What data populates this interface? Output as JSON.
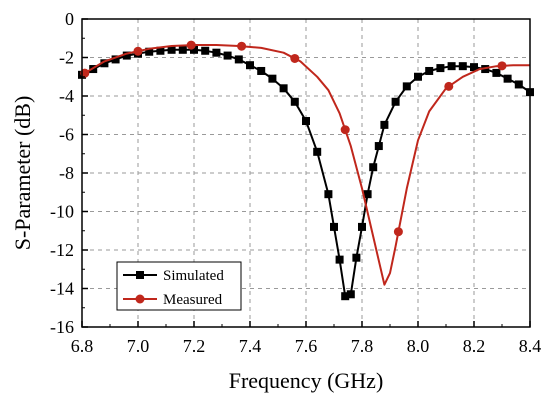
{
  "chart_data": {
    "type": "line",
    "xlabel": "Frequency (GHz)",
    "ylabel": "S-Parameter (dB)",
    "xlim": [
      6.8,
      8.4
    ],
    "ylim": [
      -16,
      0
    ],
    "x_ticks": [
      "6.8",
      "7.0",
      "7.2",
      "7.4",
      "7.6",
      "7.8",
      "8.0",
      "8.2",
      "8.4"
    ],
    "y_ticks": [
      "0",
      "-2",
      "-4",
      "-6",
      "-8",
      "-10",
      "-12",
      "-14",
      "-16"
    ],
    "grid": true,
    "grid_style": "dashed",
    "legend_position": "bottom-left",
    "series": [
      {
        "name": "Simulated",
        "color": "#000000",
        "marker": "square",
        "x": [
          6.8,
          6.84,
          6.88,
          6.92,
          6.96,
          7.0,
          7.04,
          7.08,
          7.12,
          7.16,
          7.2,
          7.24,
          7.28,
          7.32,
          7.36,
          7.4,
          7.44,
          7.48,
          7.52,
          7.56,
          7.6,
          7.64,
          7.68,
          7.7,
          7.72,
          7.74,
          7.76,
          7.78,
          7.8,
          7.82,
          7.84,
          7.86,
          7.88,
          7.92,
          7.96,
          8.0,
          8.04,
          8.08,
          8.12,
          8.16,
          8.2,
          8.24,
          8.28,
          8.32,
          8.36,
          8.4
        ],
        "y": [
          -2.9,
          -2.6,
          -2.3,
          -2.1,
          -1.9,
          -1.8,
          -1.7,
          -1.65,
          -1.6,
          -1.6,
          -1.6,
          -1.65,
          -1.75,
          -1.9,
          -2.1,
          -2.4,
          -2.7,
          -3.1,
          -3.6,
          -4.3,
          -5.3,
          -6.9,
          -9.1,
          -10.8,
          -12.5,
          -14.4,
          -14.3,
          -12.4,
          -10.8,
          -9.1,
          -7.7,
          -6.6,
          -5.5,
          -4.3,
          -3.5,
          -3.0,
          -2.7,
          -2.55,
          -2.45,
          -2.45,
          -2.5,
          -2.6,
          -2.8,
          -3.1,
          -3.4,
          -3.8
        ]
      },
      {
        "name": "Measured",
        "color": "#c0271c",
        "marker": "circle",
        "x": [
          6.8,
          6.88,
          6.96,
          7.04,
          7.12,
          7.2,
          7.28,
          7.36,
          7.44,
          7.52,
          7.58,
          7.64,
          7.68,
          7.72,
          7.76,
          7.8,
          7.84,
          7.88,
          7.9,
          7.92,
          7.96,
          8.0,
          8.04,
          8.1,
          8.16,
          8.22,
          8.28,
          8.34,
          8.4
        ],
        "y": [
          -2.9,
          -2.2,
          -1.8,
          -1.55,
          -1.4,
          -1.35,
          -1.35,
          -1.4,
          -1.5,
          -1.75,
          -2.2,
          -3.0,
          -3.7,
          -4.9,
          -6.6,
          -8.8,
          -11.3,
          -13.8,
          -13.2,
          -11.8,
          -8.8,
          -6.3,
          -4.8,
          -3.6,
          -3.0,
          -2.6,
          -2.45,
          -2.4,
          -2.4
        ],
        "marker_x": [
          6.81,
          7.0,
          7.19,
          7.37,
          7.56,
          7.74,
          7.93,
          8.11,
          8.3
        ]
      }
    ]
  }
}
